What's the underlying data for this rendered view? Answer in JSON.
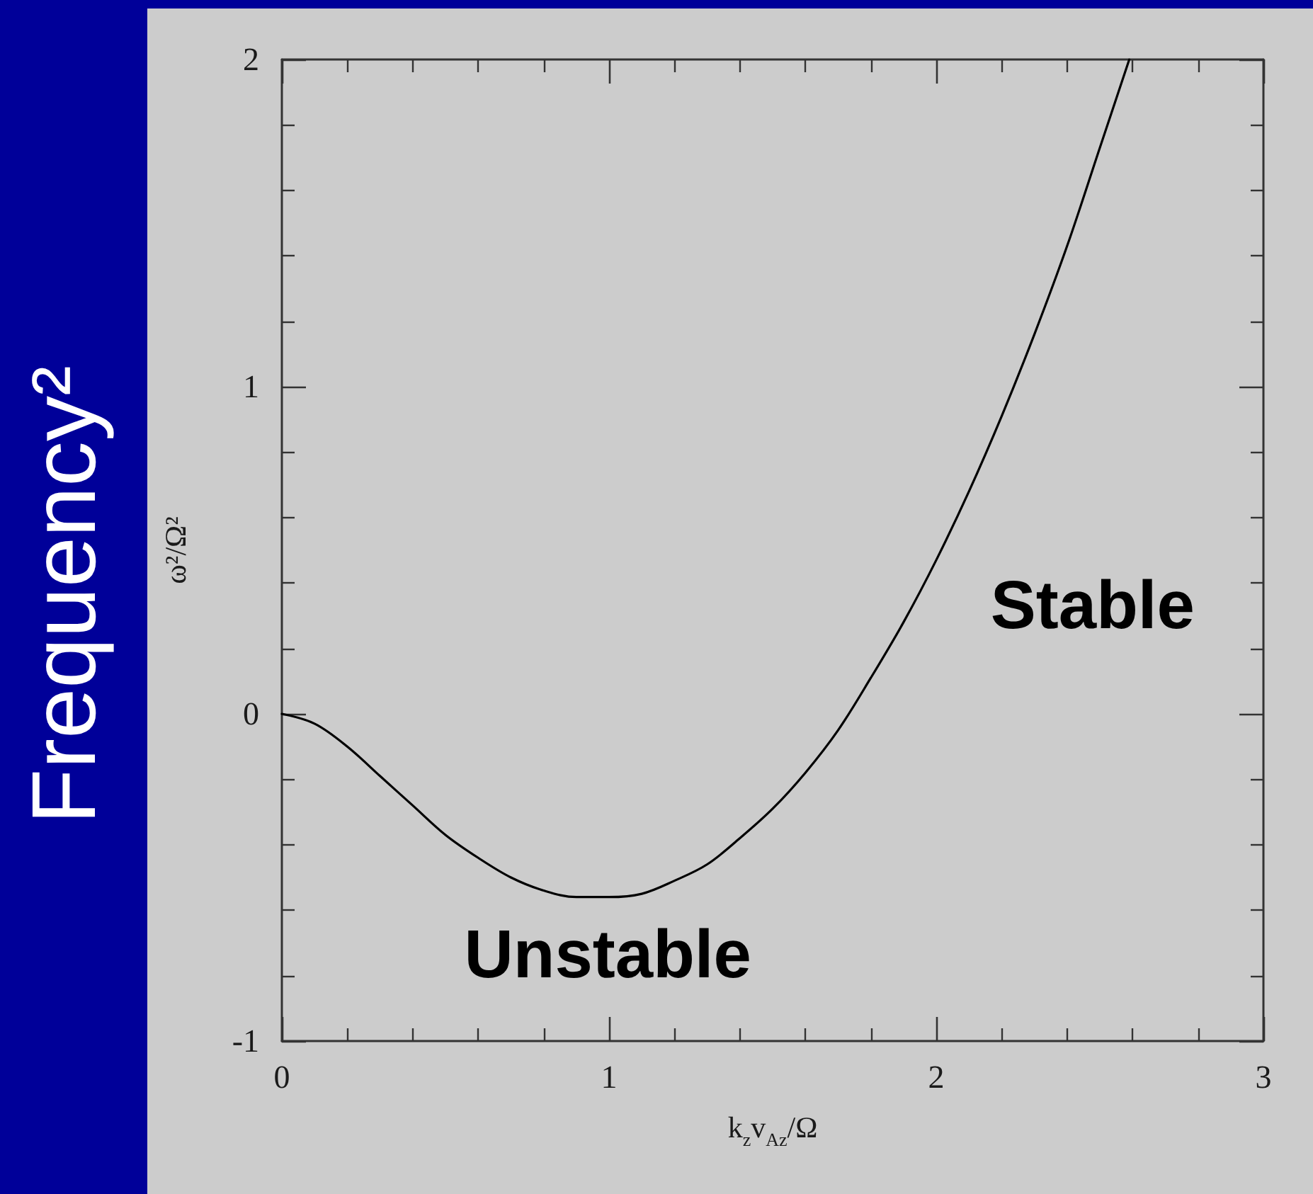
{
  "chart_data": {
    "type": "line",
    "title": "Frequency²",
    "xlabel": "k$_{z}$v$_{Az}$/Ω",
    "ylabel": "ω²/Ω²",
    "x": [
      0,
      0.1,
      0.2,
      0.3,
      0.4,
      0.5,
      0.6,
      0.7,
      0.8,
      0.9,
      1.0,
      1.1,
      1.2,
      1.3,
      1.4,
      1.5,
      1.6,
      1.7,
      1.8,
      1.9,
      2.0,
      2.1,
      2.2,
      2.3,
      2.4,
      2.5,
      2.59
    ],
    "values": [
      0,
      -0.03,
      -0.1,
      -0.19,
      -0.28,
      -0.37,
      -0.44,
      -0.5,
      -0.54,
      -0.56,
      -0.56,
      -0.55,
      -0.51,
      -0.46,
      -0.38,
      -0.29,
      -0.18,
      -0.05,
      0.11,
      0.28,
      0.47,
      0.68,
      0.91,
      1.16,
      1.43,
      1.73,
      2.0
    ],
    "color": "#000000",
    "xlim": [
      0,
      3
    ],
    "ylim": [
      -1,
      2
    ],
    "xticks": [
      0,
      {
        "value": 0.2,
        "label": null
      },
      {
        "value": 0.4,
        "label": null
      },
      {
        "value": 0.6,
        "label": null
      },
      {
        "value": 0.8,
        "label": null
      },
      1,
      {
        "value": 1.2,
        "label": null
      },
      {
        "value": 1.4,
        "label": null
      },
      {
        "value": 1.6,
        "label": null
      },
      {
        "value": 1.8,
        "label": null
      },
      2,
      {
        "value": 2.2,
        "label": null
      },
      {
        "value": 2.4,
        "label": null
      },
      {
        "value": 2.6,
        "label": null
      },
      {
        "value": 2.8,
        "label": null
      },
      3
    ],
    "yticks": [
      -1,
      {
        "value": -0.8,
        "label": null
      },
      {
        "value": -0.6,
        "label": null
      },
      {
        "value": -0.4,
        "label": null
      },
      {
        "value": -0.2,
        "label": null
      },
      0,
      {
        "value": 0.2,
        "label": null
      },
      {
        "value": 0.4,
        "label": null
      },
      {
        "value": 0.6,
        "label": null
      },
      {
        "value": 0.8,
        "label": null
      },
      1,
      {
        "value": 1.2,
        "label": null
      },
      {
        "value": 1.4,
        "label": null
      },
      {
        "value": 1.6,
        "label": null
      },
      {
        "value": 1.8,
        "label": null
      },
      2
    ],
    "annotations": [
      "Unstable",
      "Stable"
    ]
  }
}
